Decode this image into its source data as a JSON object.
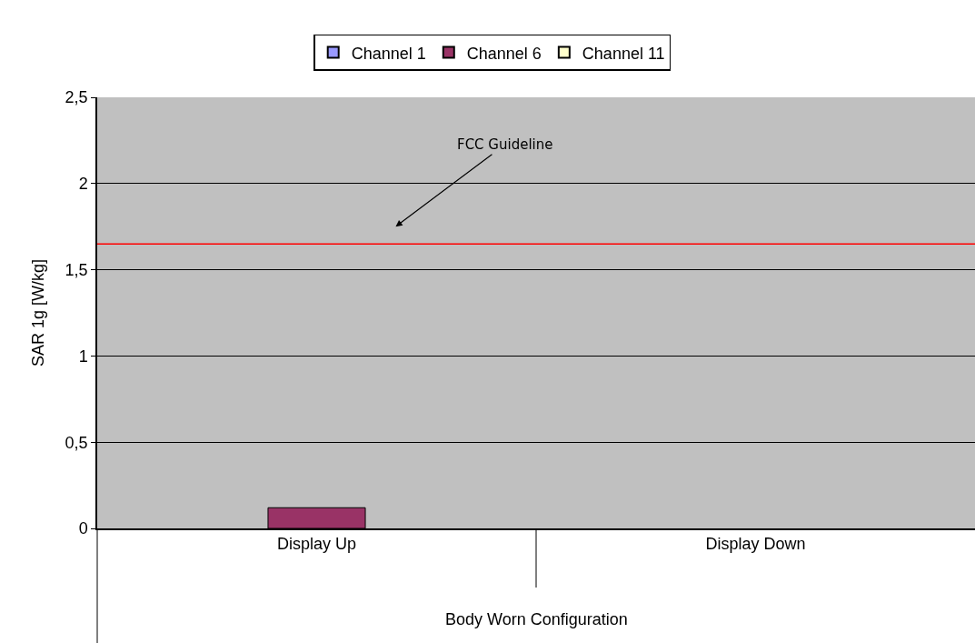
{
  "chart_data": {
    "type": "bar",
    "categories": [
      "Display Up",
      "Display Down"
    ],
    "series": [
      {
        "name": "Channel 1",
        "color": "#9999ff",
        "values": [
          null,
          null
        ]
      },
      {
        "name": "Channel 6",
        "color": "#993366",
        "values": [
          0.12,
          null
        ]
      },
      {
        "name": "Channel 11",
        "color": "#ffffcc",
        "values": [
          null,
          null
        ]
      }
    ],
    "xlabel": "Body Worn Configuration",
    "ylabel": "SAR 1g [W/kg]",
    "ylim": [
      0,
      2.5
    ],
    "yticks": [
      0,
      {
        "value": 0.5,
        "label": "0,5"
      },
      1,
      {
        "value": 1.5,
        "label": "1,5"
      },
      2,
      {
        "value": 2.5,
        "label": "2,5"
      }
    ],
    "grid": "y",
    "legend": "top",
    "ref_lines": [
      {
        "axis": "y",
        "value": 1.65,
        "color": "#ff0000"
      }
    ],
    "annotations": [
      "FCC Guideline"
    ]
  }
}
